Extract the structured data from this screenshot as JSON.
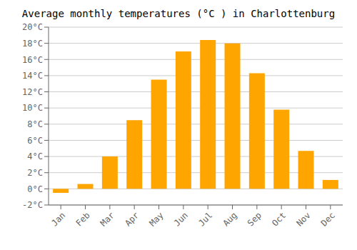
{
  "chart_data": {
    "type": "bar",
    "title": "Average monthly temperatures (°C ) in Charlottenburg",
    "categories": [
      "Jan",
      "Feb",
      "Mar",
      "Apr",
      "May",
      "Jun",
      "Jul",
      "Aug",
      "Sep",
      "Oct",
      "Nov",
      "Dec"
    ],
    "values": [
      -0.5,
      0.6,
      4.0,
      8.5,
      13.5,
      17.0,
      18.4,
      18.0,
      14.3,
      9.8,
      4.7,
      1.1
    ],
    "color": "#FFA500",
    "ylim": [
      -2,
      20
    ],
    "yticks": [
      {
        "value": -2,
        "label": "-2°C"
      },
      {
        "value": 0,
        "label": "0°C"
      },
      {
        "value": 2,
        "label": "2°C"
      },
      {
        "value": 4,
        "label": "4°C"
      },
      {
        "value": 6,
        "label": "6°C"
      },
      {
        "value": 8,
        "label": "8°C"
      },
      {
        "value": 10,
        "label": "10°C"
      },
      {
        "value": 12,
        "label": "12°C"
      },
      {
        "value": 14,
        "label": "14°C"
      },
      {
        "value": 16,
        "label": "16°C"
      },
      {
        "value": 18,
        "label": "18°C"
      },
      {
        "value": 20,
        "label": "20°C"
      }
    ],
    "grid": true
  }
}
